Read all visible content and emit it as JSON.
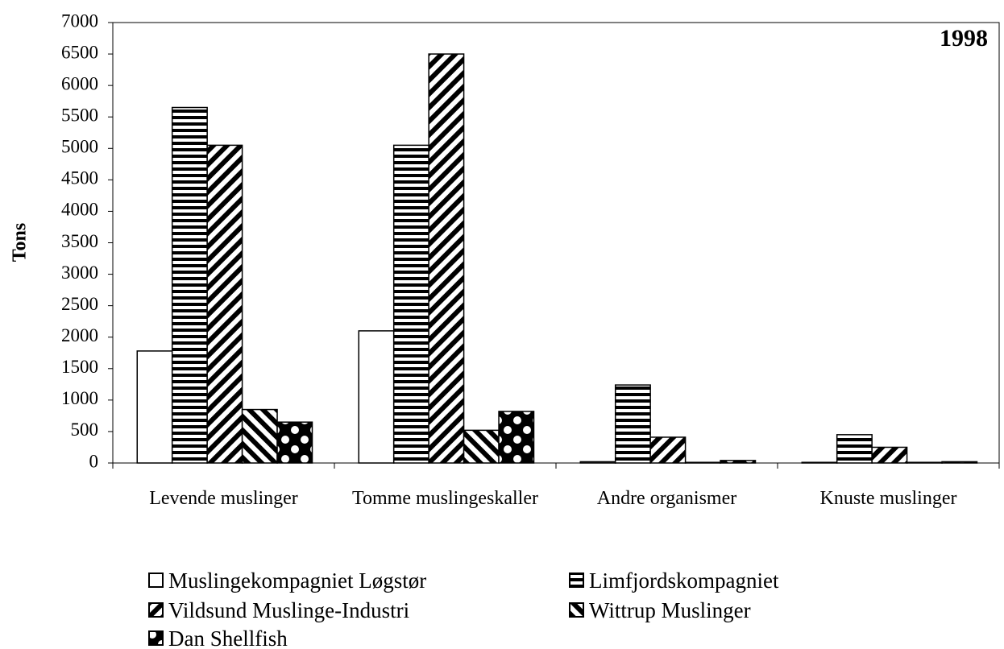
{
  "chart_data": {
    "type": "bar",
    "title": "1998",
    "y_label": "Tons",
    "categories": [
      "Levende muslinger",
      "Tomme muslingeskaller",
      "Andre organismer",
      "Knuste muslinger"
    ],
    "series": [
      {
        "name": "Muslingekompagniet Løgstør",
        "values": [
          1780,
          2100,
          20,
          10
        ]
      },
      {
        "name": "Limfjordskompagniet",
        "values": [
          5650,
          5050,
          1240,
          450
        ]
      },
      {
        "name": "Vildsund Muslinge-Industri",
        "values": [
          5050,
          6500,
          410,
          250
        ]
      },
      {
        "name": "Wittrup Muslinger",
        "values": [
          850,
          520,
          10,
          10
        ]
      },
      {
        "name": "Dan Shellfish",
        "values": [
          650,
          820,
          40,
          20
        ]
      }
    ],
    "ylim": [
      0,
      7000
    ],
    "yticks": [
      0,
      500,
      1000,
      1500,
      2000,
      2500,
      3000,
      3500,
      4000,
      4500,
      5000,
      5500,
      6000,
      6500,
      7000
    ]
  }
}
